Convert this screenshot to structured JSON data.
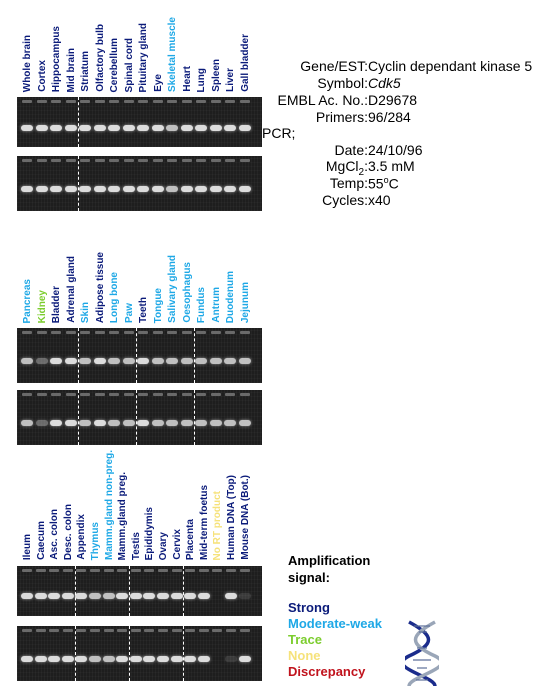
{
  "panels": [
    {
      "lanes": [
        {
          "label": "Whole brain",
          "signal": "strong"
        },
        {
          "label": "Cortex",
          "signal": "strong"
        },
        {
          "label": "Hippocampus",
          "signal": "strong"
        },
        {
          "label": "Mid brain",
          "signal": "strong"
        },
        {
          "label": "Striatum",
          "signal": "strong"
        },
        {
          "label": "Olfactory bulb",
          "signal": "strong"
        },
        {
          "label": "Cerebellum",
          "signal": "strong"
        },
        {
          "label": "Spinal cord",
          "signal": "strong"
        },
        {
          "label": "Pituitary gland",
          "signal": "strong"
        },
        {
          "label": "Eye",
          "signal": "strong"
        },
        {
          "label": "Skeletal muscle",
          "signal": "moderate"
        },
        {
          "label": "Heart",
          "signal": "strong"
        },
        {
          "label": "Lung",
          "signal": "strong"
        },
        {
          "label": "Spleen",
          "signal": "strong"
        },
        {
          "label": "Liver",
          "signal": "strong"
        },
        {
          "label": "Gall bladder",
          "signal": "strong"
        }
      ]
    },
    {
      "lanes": [
        {
          "label": "Pancreas",
          "signal": "moderate"
        },
        {
          "label": "Kidney",
          "signal": "trace"
        },
        {
          "label": "Bladder",
          "signal": "strong"
        },
        {
          "label": "Adrenal gland",
          "signal": "strong"
        },
        {
          "label": "Skin",
          "signal": "moderate"
        },
        {
          "label": "Adipose tissue",
          "signal": "strong"
        },
        {
          "label": "Long bone",
          "signal": "moderate"
        },
        {
          "label": "Paw",
          "signal": "moderate"
        },
        {
          "label": "Teeth",
          "signal": "strong"
        },
        {
          "label": "Tongue",
          "signal": "moderate"
        },
        {
          "label": "Salivary gland",
          "signal": "moderate"
        },
        {
          "label": "Oesophagus",
          "signal": "moderate"
        },
        {
          "label": "Fundus",
          "signal": "moderate"
        },
        {
          "label": "Antrum",
          "signal": "moderate"
        },
        {
          "label": "Duodenum",
          "signal": "moderate"
        },
        {
          "label": "Jejunum",
          "signal": "moderate"
        }
      ]
    },
    {
      "lanes": [
        {
          "label": "Ileum",
          "signal": "strong"
        },
        {
          "label": "Caecum",
          "signal": "strong"
        },
        {
          "label": "Asc. colon",
          "signal": "strong"
        },
        {
          "label": "Desc. colon",
          "signal": "strong"
        },
        {
          "label": "Appendix",
          "signal": "strong"
        },
        {
          "label": "Thymus",
          "signal": "moderate"
        },
        {
          "label": "Mamm.gland non-preg.",
          "signal": "moderate"
        },
        {
          "label": "Mamm.gland preg.",
          "signal": "strong"
        },
        {
          "label": "Testis",
          "signal": "strong"
        },
        {
          "label": "Epididymis",
          "signal": "strong"
        },
        {
          "label": "Ovary",
          "signal": "strong"
        },
        {
          "label": "Cervix",
          "signal": "strong"
        },
        {
          "label": "Placenta",
          "signal": "strong"
        },
        {
          "label": "Mid-term foetus",
          "signal": "strong"
        },
        {
          "label": "No RT product",
          "signal": "none"
        },
        {
          "label": "Human DNA (Top)",
          "signal": "strong"
        },
        {
          "label": "Mouse DNA (Bot.)",
          "signal": "strong"
        }
      ]
    }
  ],
  "info": {
    "gene_label": "Gene/EST:",
    "gene_value": "Cyclin dependant kinase 5",
    "symbol_label": "Symbol:",
    "symbol_value": "Cdk5",
    "embl_label": "EMBL Ac. No.:",
    "embl_value": "D29678",
    "primers_label": "Primers:",
    "primers_value": "96/284",
    "pcr_label": "PCR;",
    "date_label": "Date:",
    "date_value": "24/10/96",
    "mgcl2_label_main": "MgCl",
    "mgcl2_label_sub": "2",
    "mgcl2_label_colon": ":",
    "mgcl2_value": "3.5 mM",
    "temp_label": "Temp:",
    "temp_value_num": "55",
    "temp_value_sup": "o",
    "temp_value_unit": "C",
    "cycles_label": "Cycles:",
    "cycles_value": "x40"
  },
  "legend": {
    "title_line1": "Amplification",
    "title_line2": "signal:",
    "items": [
      {
        "key": "strong",
        "label": "Strong",
        "color": "#0b1b7a"
      },
      {
        "key": "moderate",
        "label": "Moderate-weak",
        "color": "#1ea8e6"
      },
      {
        "key": "trace",
        "label": "Trace",
        "color": "#7ccd2e"
      },
      {
        "key": "none",
        "label": "None",
        "color": "#f6e27a"
      },
      {
        "key": "discrepancy",
        "label": "Discrepancy",
        "color": "#c1131d"
      }
    ],
    "dna_icon": "dna-helix-icon"
  }
}
